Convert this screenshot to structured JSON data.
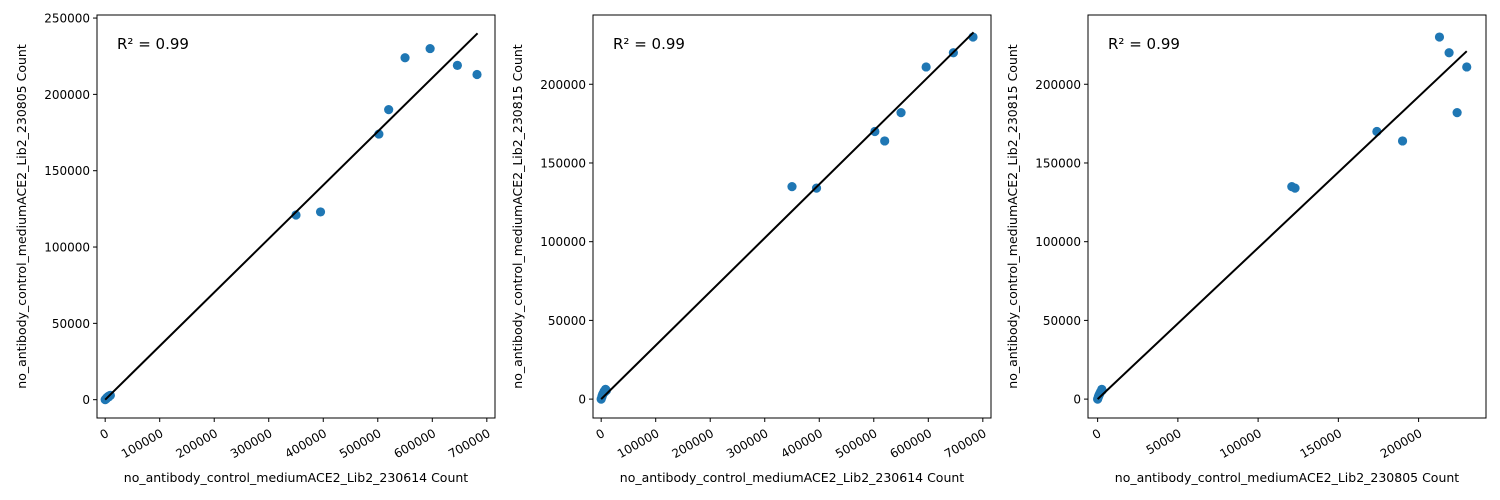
{
  "chart_data": [
    {
      "type": "scatter",
      "xlabel": "no_antibody_control_mediumACE2_Lib2_230614 Count",
      "ylabel": "no_antibody_control_mediumACE2_Lib2_230805 Count",
      "annotation": "R² = 0.99",
      "xlim": [
        -15000,
        715000
      ],
      "ylim": [
        -12000,
        252000
      ],
      "xticks": [
        0,
        100000,
        200000,
        300000,
        400000,
        500000,
        600000,
        700000
      ],
      "xtick_labels": [
        "0",
        "100000",
        "200000",
        "300000",
        "400000",
        "500000",
        "600000",
        "700000"
      ],
      "yticks": [
        0,
        50000,
        100000,
        150000,
        200000,
        250000
      ],
      "ytick_labels": [
        "0",
        "50000",
        "100000",
        "150000",
        "200000",
        "250000"
      ],
      "fit_line": {
        "x": [
          0,
          683000
        ],
        "y": [
          0,
          240000
        ]
      },
      "series": [
        {
          "color": "#1f77b4",
          "x": [
            0,
            1200,
            2500,
            4000,
            5500,
            8000,
            1500,
            3000,
            6500,
            9500,
            350000,
            395000,
            502000,
            520000,
            550000,
            596000,
            646000,
            682000
          ],
          "y": [
            0,
            400,
            900,
            1500,
            2100,
            2600,
            600,
            1200,
            1800,
            2800,
            121000,
            123000,
            174000,
            190000,
            224000,
            230000,
            219000,
            213000
          ]
        }
      ],
      "grid": false,
      "legend": "none"
    },
    {
      "type": "scatter",
      "xlabel": "no_antibody_control_mediumACE2_Lib2_230614 Count",
      "ylabel": "no_antibody_control_mediumACE2_Lib2_230815 Count",
      "annotation": "R² = 0.99",
      "xlim": [
        -15000,
        715000
      ],
      "ylim": [
        -12000,
        244000
      ],
      "xticks": [
        0,
        100000,
        200000,
        300000,
        400000,
        500000,
        600000,
        700000
      ],
      "xtick_labels": [
        "0",
        "100000",
        "200000",
        "300000",
        "400000",
        "500000",
        "600000",
        "700000"
      ],
      "yticks": [
        0,
        50000,
        100000,
        150000,
        200000
      ],
      "ytick_labels": [
        "0",
        "50000",
        "100000",
        "150000",
        "200000"
      ],
      "fit_line": {
        "x": [
          0,
          683000
        ],
        "y": [
          0,
          233000
        ]
      },
      "series": [
        {
          "color": "#1f77b4",
          "x": [
            0,
            1200,
            2500,
            4000,
            5500,
            8000,
            1500,
            3000,
            6500,
            9500,
            350000,
            395000,
            502000,
            520000,
            550000,
            596000,
            646000,
            682000
          ],
          "y": [
            0,
            1200,
            2500,
            3800,
            5000,
            6200,
            1800,
            3200,
            4500,
            5500,
            135000,
            134000,
            170000,
            164000,
            182000,
            211000,
            220000,
            230000
          ]
        }
      ],
      "grid": false,
      "legend": "none"
    },
    {
      "type": "scatter",
      "xlabel": "no_antibody_control_mediumACE2_Lib2_230805 Count",
      "ylabel": "no_antibody_control_mediumACE2_Lib2_230815 Count",
      "annotation": "R² = 0.99",
      "xlim": [
        -6000,
        242000
      ],
      "ylim": [
        -12000,
        244000
      ],
      "xticks": [
        0,
        50000,
        100000,
        150000,
        200000
      ],
      "xtick_labels": [
        "0",
        "50000",
        "100000",
        "150000",
        "200000"
      ],
      "yticks": [
        0,
        50000,
        100000,
        150000,
        200000
      ],
      "ytick_labels": [
        "0",
        "50000",
        "100000",
        "150000",
        "200000"
      ],
      "fit_line": {
        "x": [
          0,
          230000
        ],
        "y": [
          0,
          221000
        ]
      },
      "series": [
        {
          "color": "#1f77b4",
          "x": [
            0,
            400,
            900,
            1500,
            2100,
            2600,
            600,
            1200,
            1800,
            2800,
            121000,
            123000,
            174000,
            190000,
            224000,
            230000,
            219000,
            213000
          ],
          "y": [
            0,
            1200,
            2500,
            3800,
            5000,
            6200,
            1800,
            3200,
            4500,
            5500,
            135000,
            134000,
            170000,
            164000,
            182000,
            211000,
            220000,
            230000
          ]
        }
      ],
      "grid": false,
      "legend": "none"
    }
  ]
}
